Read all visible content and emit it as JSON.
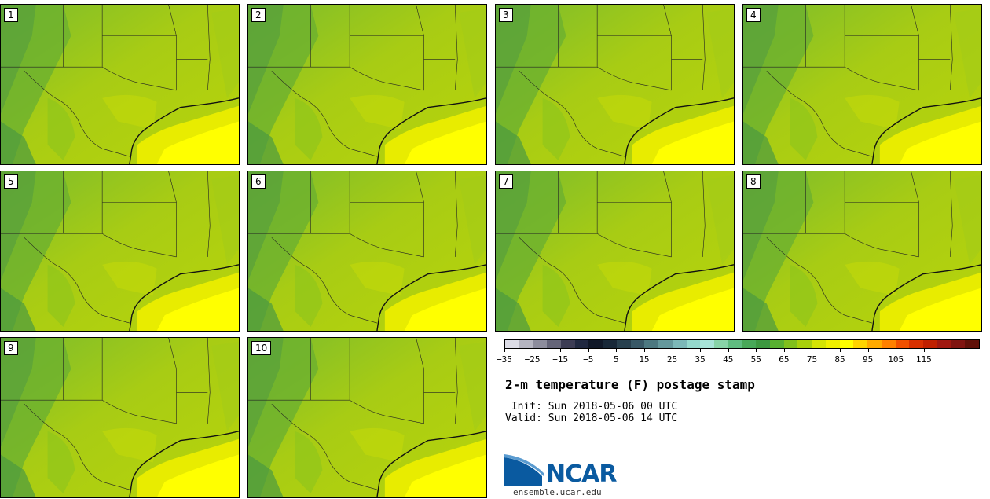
{
  "panels": [
    {
      "label": "1"
    },
    {
      "label": "2"
    },
    {
      "label": "3"
    },
    {
      "label": "4"
    },
    {
      "label": "5"
    },
    {
      "label": "6"
    },
    {
      "label": "7"
    },
    {
      "label": "8"
    },
    {
      "label": "9"
    },
    {
      "label": "10"
    }
  ],
  "colorbar": {
    "colors": [
      "#dcdce6",
      "#b4b4c0",
      "#8c8c9c",
      "#646478",
      "#3c3c54",
      "#202840",
      "#101828",
      "#182838",
      "#28404e",
      "#385866",
      "#4c7880",
      "#64989c",
      "#7cb8b8",
      "#94d8cc",
      "#a8e4d8",
      "#88d4a8",
      "#60bc80",
      "#48a858",
      "#3c9840",
      "#58b030",
      "#80c01c",
      "#a8d00c",
      "#d4e404",
      "#f0f000",
      "#ffff00",
      "#ffd400",
      "#ffaa00",
      "#ff8000",
      "#f05000",
      "#d83000",
      "#c02000",
      "#a01810",
      "#801410",
      "#601008"
    ],
    "tick_labels": [
      "−35",
      "−25",
      "−15",
      "−5",
      "5",
      "15",
      "25",
      "35",
      "45",
      "55",
      "65",
      "75",
      "85",
      "95",
      "105",
      "115"
    ]
  },
  "title": "2-m temperature (F) postage stamp",
  "init_line": " Init: Sun 2018-05-06 00 UTC",
  "valid_line": "Valid: Sun 2018-05-06 14 UTC",
  "logo": {
    "name": "NCAR",
    "url": "ensemble.ucar.edu"
  }
}
